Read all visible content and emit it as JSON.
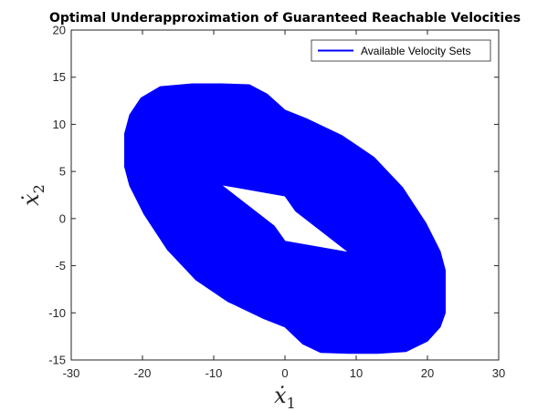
{
  "chart_data": {
    "type": "area",
    "title": "Optimal Underapproximation of Guaranteed Reachable Velocities",
    "xlabel": {
      "symbol": "ẋ",
      "subscript": "1"
    },
    "ylabel": {
      "symbol": "ẋ",
      "subscript": "2"
    },
    "xlim": [
      -30,
      30
    ],
    "ylim": [
      -15,
      20
    ],
    "xticks": [
      -30,
      -20,
      -10,
      0,
      10,
      20,
      30
    ],
    "yticks": [
      -15,
      -10,
      -5,
      0,
      5,
      10,
      15,
      20
    ],
    "xtick_labels": [
      "-30",
      "-20",
      "-10",
      "0",
      "10",
      "20",
      "30"
    ],
    "ytick_labels": [
      "-15",
      "-10",
      "-5",
      "0",
      "5",
      "10",
      "15",
      "20"
    ],
    "grid": false,
    "legend": {
      "position": "top-right",
      "entries": [
        "Available Velocity Sets"
      ]
    },
    "series": [
      {
        "name": "Available Velocity Sets",
        "color": "#0000ff",
        "outer_boundary": [
          [
            -22.5,
            9.0
          ],
          [
            -21.8,
            11.0
          ],
          [
            -20.2,
            12.8
          ],
          [
            -17.5,
            14.0
          ],
          [
            -13.0,
            14.3
          ],
          [
            -9.0,
            14.3
          ],
          [
            -5.0,
            14.2
          ],
          [
            -2.5,
            13.2
          ],
          [
            0.0,
            11.5
          ],
          [
            3.0,
            10.6
          ],
          [
            8.0,
            8.8
          ],
          [
            12.5,
            6.5
          ],
          [
            16.5,
            3.3
          ],
          [
            19.8,
            -0.5
          ],
          [
            21.8,
            -3.5
          ],
          [
            22.5,
            -5.5
          ],
          [
            22.5,
            -10.0
          ],
          [
            21.8,
            -11.5
          ],
          [
            20.0,
            -13.0
          ],
          [
            17.0,
            -14.1
          ],
          [
            13.0,
            -14.3
          ],
          [
            9.0,
            -14.3
          ],
          [
            5.0,
            -14.2
          ],
          [
            2.5,
            -13.3
          ],
          [
            0.0,
            -11.5
          ],
          [
            -3.0,
            -10.6
          ],
          [
            -8.0,
            -8.8
          ],
          [
            -12.5,
            -6.5
          ],
          [
            -16.5,
            -3.3
          ],
          [
            -19.8,
            0.5
          ],
          [
            -21.8,
            3.5
          ],
          [
            -22.5,
            5.5
          ]
        ],
        "inner_hole": [
          [
            -9.0,
            3.6
          ],
          [
            0.0,
            2.4
          ],
          [
            1.5,
            0.8
          ],
          [
            9.0,
            -3.6
          ],
          [
            0.0,
            -2.4
          ],
          [
            -1.5,
            -0.8
          ]
        ]
      }
    ]
  }
}
